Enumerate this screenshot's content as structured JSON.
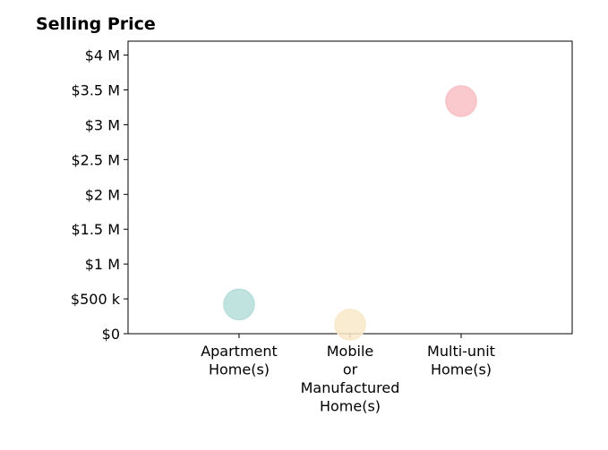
{
  "chart_data": {
    "type": "scatter",
    "title": "Selling Price",
    "xlabel": "",
    "ylabel": "",
    "categories": [
      [
        "Apartment",
        "Home(s)"
      ],
      [
        "Mobile",
        "or",
        "Manufactured",
        "Home(s)"
      ],
      [
        "Multi-unit",
        "Home(s)"
      ]
    ],
    "values": [
      420000,
      130000,
      3340000
    ],
    "colors": [
      "#b5dedb",
      "#f8e9c9",
      "#f8c0c4"
    ],
    "ylim": [
      0,
      4200000
    ],
    "yticks": [
      {
        "value": 0,
        "label": "$0"
      },
      {
        "value": 500000,
        "label": "$500 k"
      },
      {
        "value": 1000000,
        "label": "$1 M"
      },
      {
        "value": 1500000,
        "label": "$1.5 M"
      },
      {
        "value": 2000000,
        "label": "$2 M"
      },
      {
        "value": 2500000,
        "label": "$2.5 M"
      },
      {
        "value": 3000000,
        "label": "$3 M"
      },
      {
        "value": 3500000,
        "label": "$3.5 M"
      },
      {
        "value": 4000000,
        "label": "$4 M"
      }
    ],
    "grid": false,
    "legend": "none"
  }
}
